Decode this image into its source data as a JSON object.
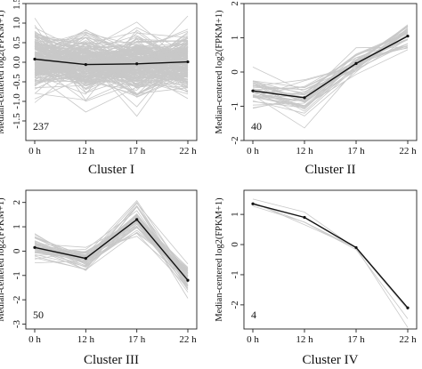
{
  "chart_data": [
    {
      "type": "line",
      "title": "Cluster I",
      "count_label": "237",
      "ylabel": "Median-centered log2(FPKM+1)",
      "categories": [
        "0 h",
        "12 h",
        "17 h",
        "22 h"
      ],
      "ylim": [
        -2,
        1.5
      ],
      "yticks": [
        -1.5,
        -1.0,
        -0.5,
        0.0,
        0.5,
        1.0,
        1.5
      ],
      "ytick_labels": [
        "-1.5",
        "-1.0",
        "-0.5",
        "0.0",
        "0.5",
        "1.0",
        "1.5"
      ],
      "median": [
        0.08,
        -0.06,
        -0.04,
        0.01
      ],
      "gene_count": 237,
      "spread": [
        0.7,
        0.65,
        0.7,
        0.65
      ],
      "colors": {
        "genes": "#c8c8c8",
        "median": "#111111"
      }
    },
    {
      "type": "line",
      "title": "Cluster II",
      "count_label": "40",
      "ylabel": "Median-centered log2(FPKM+1)",
      "categories": [
        "0 h",
        "12 h",
        "17 h",
        "22 h"
      ],
      "ylim": [
        -2,
        2
      ],
      "yticks": [
        -2,
        -1,
        0,
        1,
        2
      ],
      "ytick_labels": [
        "-2",
        "-1",
        "0",
        "1",
        "2"
      ],
      "median": [
        -0.55,
        -0.75,
        0.25,
        1.05
      ],
      "gene_count": 40,
      "spread": [
        0.4,
        0.4,
        0.35,
        0.35
      ],
      "colors": {
        "genes": "#c8c8c8",
        "median": "#111111"
      }
    },
    {
      "type": "line",
      "title": "Cluster III",
      "count_label": "50",
      "ylabel": "Median-centered log2(FPKM+1)",
      "categories": [
        "0 h",
        "12 h",
        "17 h",
        "22 h"
      ],
      "ylim": [
        -3.2,
        2.5
      ],
      "yticks": [
        -3,
        -2,
        -1,
        0,
        1,
        2
      ],
      "ytick_labels": [
        "-3",
        "-2",
        "-1",
        "0",
        "1",
        "2"
      ],
      "median": [
        0.15,
        -0.3,
        1.3,
        -1.2
      ],
      "gene_count": 50,
      "spread": [
        0.55,
        0.5,
        0.6,
        0.6
      ],
      "colors": {
        "genes": "#c8c8c8",
        "median": "#111111"
      }
    },
    {
      "type": "line",
      "title": "Cluster IV",
      "count_label": "4",
      "ylabel": "Median-centered log2(FPKM+1)",
      "categories": [
        "0 h",
        "12 h",
        "17 h",
        "22 h"
      ],
      "ylim": [
        -2.8,
        1.8
      ],
      "yticks": [
        -2,
        -1,
        0,
        1
      ],
      "ytick_labels": [
        "-2",
        "-1",
        "0",
        "1"
      ],
      "median": [
        1.35,
        0.9,
        -0.1,
        -2.1
      ],
      "gene_count": 4,
      "spread": [
        0.25,
        0.35,
        0.1,
        0.5
      ],
      "colors": {
        "genes": "#c8c8c8",
        "median": "#111111"
      }
    }
  ]
}
